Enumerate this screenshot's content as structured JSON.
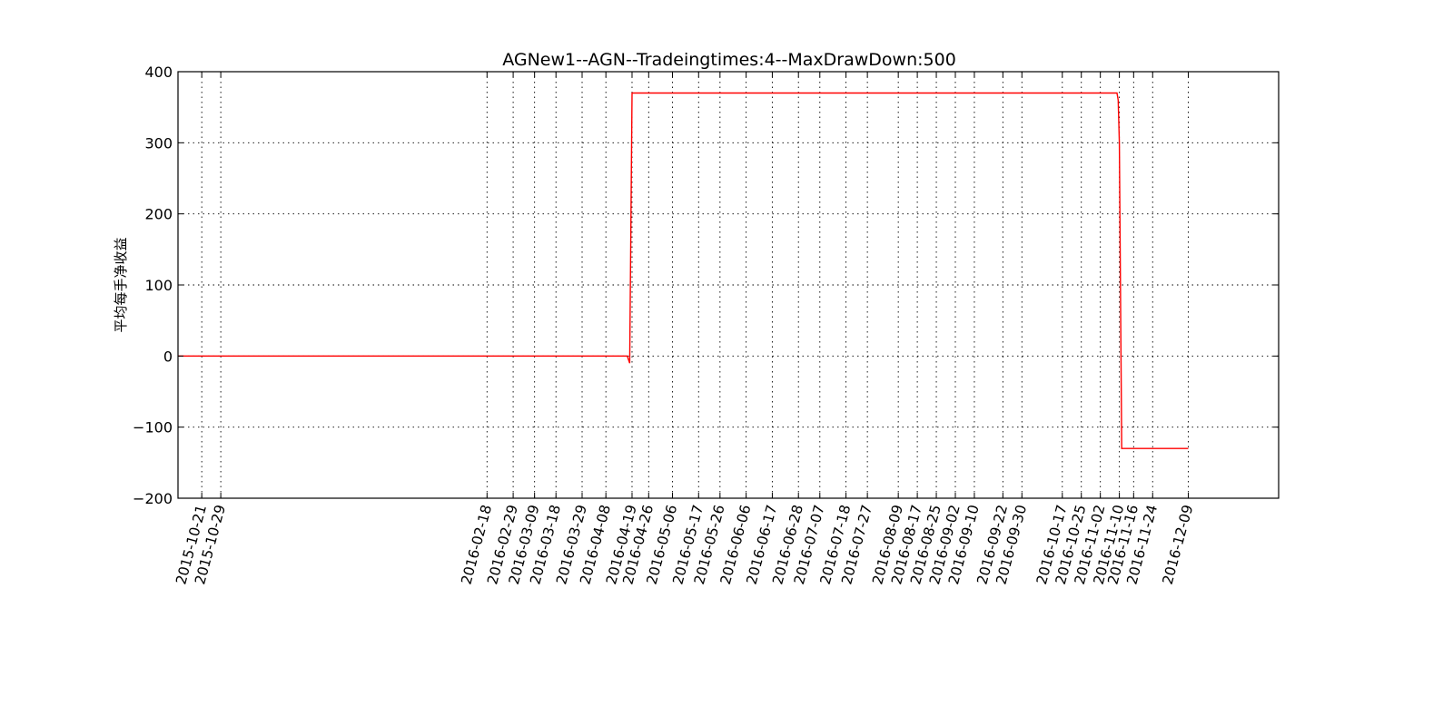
{
  "chart_data": {
    "type": "line",
    "title": "AGNew1--AGN--Tradeingtimes:4--MaxDrawDown:500",
    "xlabel": "",
    "ylabel": "平均每手净收益",
    "ylim": [
      -200,
      400
    ],
    "yticks": [
      400,
      300,
      200,
      100,
      0,
      -100,
      -200
    ],
    "ytick_labels": [
      "400",
      "300",
      "200",
      "100",
      "0",
      "−100",
      "−200"
    ],
    "xlim": [
      "2015-10-11",
      "2017-01-16"
    ],
    "xticks": [
      "2015-10-21",
      "2015-10-29",
      "2016-02-18",
      "2016-02-29",
      "2016-03-09",
      "2016-03-18",
      "2016-03-29",
      "2016-04-08",
      "2016-04-19",
      "2016-04-26",
      "2016-05-06",
      "2016-05-17",
      "2016-05-26",
      "2016-06-06",
      "2016-06-17",
      "2016-06-28",
      "2016-07-07",
      "2016-07-18",
      "2016-07-27",
      "2016-08-09",
      "2016-08-17",
      "2016-08-25",
      "2016-09-02",
      "2016-09-10",
      "2016-09-22",
      "2016-09-30",
      "2016-10-17",
      "2016-10-25",
      "2016-11-02",
      "2016-11-10",
      "2016-11-16",
      "2016-11-24",
      "2016-12-09"
    ],
    "grid": true,
    "line_color": "#ff0000",
    "series": [
      {
        "x": [
          "2015-10-11",
          "2016-04-17",
          "2016-04-18",
          "2016-04-19",
          "2016-04-20",
          "2016-11-09",
          "2016-11-09T12",
          "2016-11-10",
          "2016-11-11",
          "2016-12-09"
        ],
        "values": [
          0,
          0,
          -10,
          370,
          370,
          370,
          360,
          300,
          -130,
          -130
        ]
      }
    ]
  }
}
